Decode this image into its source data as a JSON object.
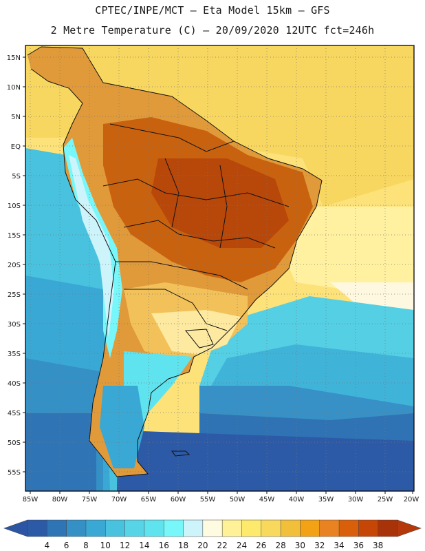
{
  "header": {
    "line1": "CPTEC/INPE/MCT –  Eta Model 15km – GFS",
    "line2": "2 Metre Temperature (C) – 20/09/2020 12UTC fct=246h"
  },
  "axes": {
    "lat_labels": [
      "15N",
      "10N",
      "5N",
      "EQ",
      "5S",
      "10S",
      "15S",
      "20S",
      "25S",
      "30S",
      "35S",
      "40S",
      "45S",
      "50S",
      "55S"
    ],
    "lon_labels": [
      "85W",
      "80W",
      "75W",
      "70W",
      "65W",
      "60W",
      "55W",
      "50W",
      "45W",
      "40W",
      "35W",
      "30W",
      "25W",
      "20W"
    ]
  },
  "legend": {
    "values": [
      "4",
      "6",
      "8",
      "10",
      "12",
      "14",
      "16",
      "18",
      "20",
      "22",
      "24",
      "26",
      "28",
      "30",
      "32",
      "34",
      "36",
      "38"
    ],
    "colors": [
      "#2d5aa6",
      "#2f74b5",
      "#3590c6",
      "#3aa8d4",
      "#48c2de",
      "#57d4e6",
      "#5fe3ee",
      "#78f7fa",
      "#cdf3fb",
      "#fffbe1",
      "#fff197",
      "#fde96c",
      "#f8d95d",
      "#f2bf3a",
      "#f2a214",
      "#e98321",
      "#d95f0b",
      "#c64606",
      "#a83308"
    ],
    "low_color": "#2c56a4",
    "high_color": "#b5380a"
  }
}
